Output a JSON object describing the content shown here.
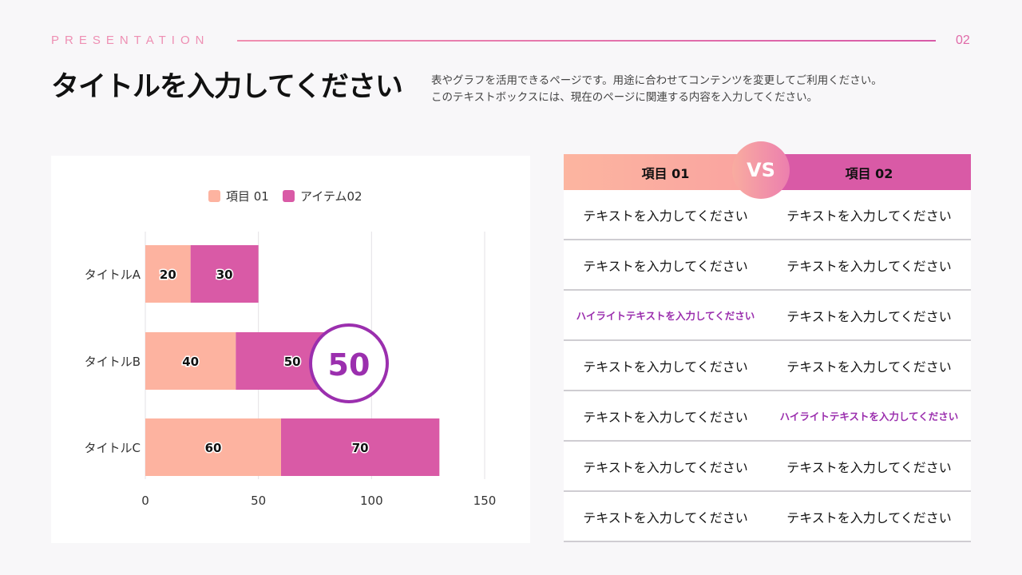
{
  "header": {
    "eyebrow": "PRESENTATION",
    "page_number": "02",
    "title": "タイトルを入力してください",
    "description": [
      "表やグラフを活用できるページです。用途に合わせてコンテンツを変更してご利用ください。",
      "このテキストボックスには、現在のページに関連する内容を入力してください。"
    ]
  },
  "chart_data": {
    "type": "bar",
    "orientation": "horizontal",
    "stacked": true,
    "categories": [
      "タイトルA",
      "タイトルB",
      "タイトルC"
    ],
    "series": [
      {
        "name": "項目 01",
        "values": [
          20,
          40,
          60
        ],
        "color": "#fdb3a0"
      },
      {
        "name": "アイテム02",
        "values": [
          30,
          50,
          70
        ],
        "color": "#d95aa6"
      }
    ],
    "xlim": [
      0,
      150
    ],
    "xticks": [
      "0",
      "50",
      "100",
      "150"
    ],
    "grid": true,
    "legend": "top",
    "callout": {
      "value": "50",
      "color": "#9b2fae"
    }
  },
  "table": {
    "header": [
      "項目 01",
      "項目 02"
    ],
    "vs_label": "VS",
    "rows": [
      [
        {
          "text": "テキストを入力してください"
        },
        {
          "text": "テキストを入力してください"
        }
      ],
      [
        {
          "text": "テキストを入力してください"
        },
        {
          "text": "テキストを入力してください"
        }
      ],
      [
        {
          "text": "ハイライトテキストを入力してください",
          "highlight": true
        },
        {
          "text": "テキストを入力してください"
        }
      ],
      [
        {
          "text": "テキストを入力してください"
        },
        {
          "text": "テキストを入力してください"
        }
      ],
      [
        {
          "text": "テキストを入力してください"
        },
        {
          "text": "ハイライトテキストを入力してください",
          "highlight": true
        }
      ],
      [
        {
          "text": "テキストを入力してください"
        },
        {
          "text": "テキストを入力してください"
        }
      ],
      [
        {
          "text": "テキストを入力してください"
        },
        {
          "text": "テキストを入力してください"
        }
      ]
    ]
  }
}
